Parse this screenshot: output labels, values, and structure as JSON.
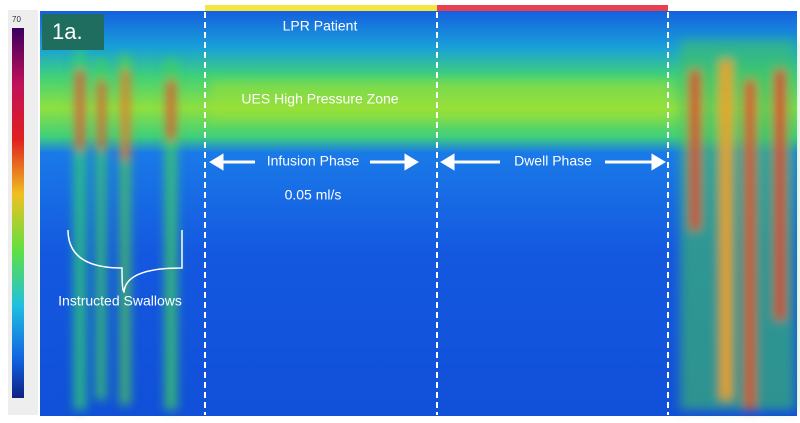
{
  "figure": {
    "panel_label": "1a.",
    "title": "LPR Patient",
    "zone_label": "UES High Pressure Zone",
    "phase_1": "Infusion Phase",
    "infusion_rate": "0.05 ml/s",
    "phase_2": "Dwell Phase",
    "swallows_label": "Instructed Swallows",
    "scale_max": "70"
  }
}
